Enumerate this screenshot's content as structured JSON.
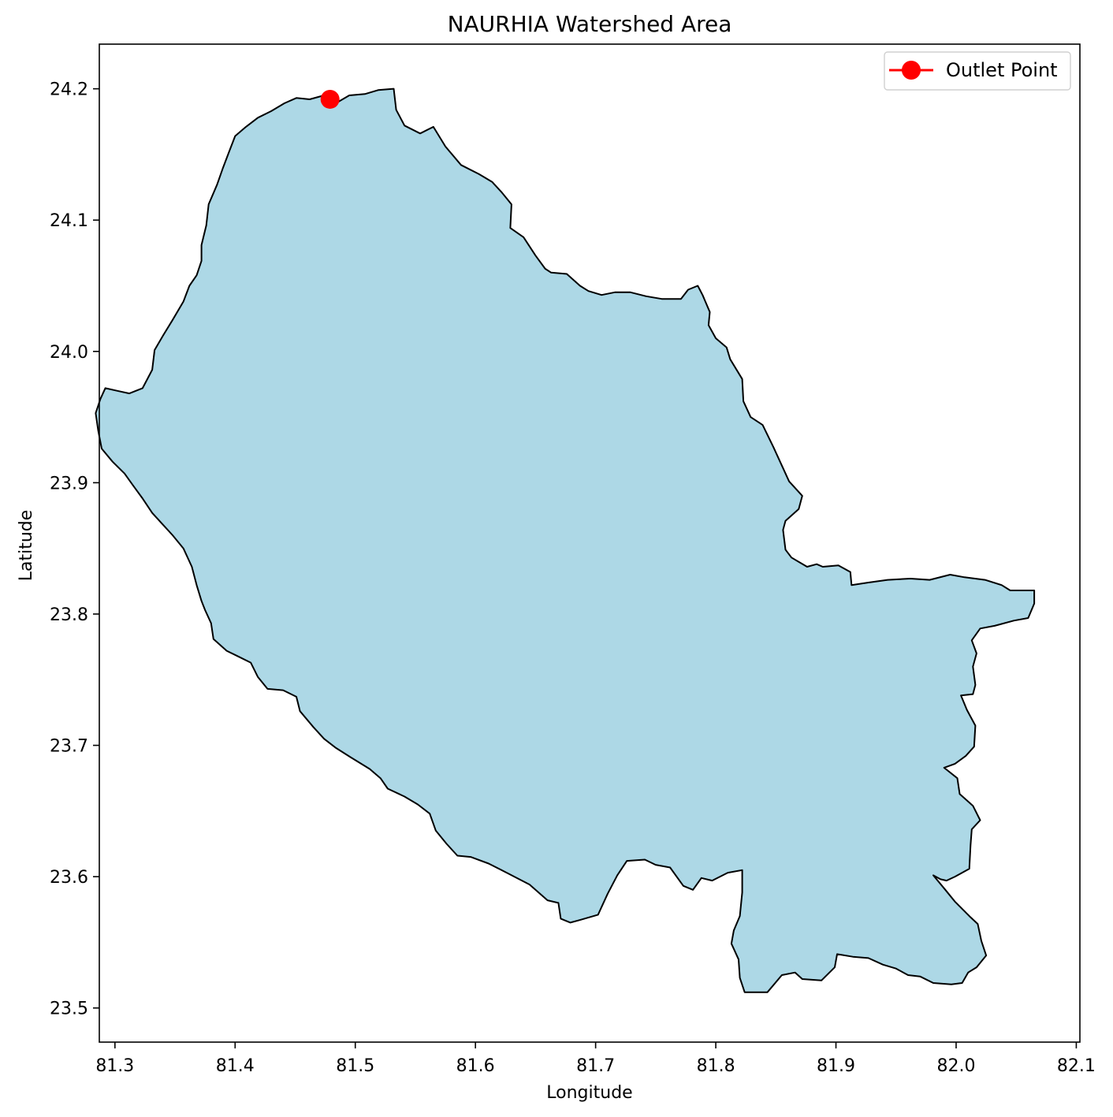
{
  "title": "NAURHIA Watershed Area",
  "chart_data": {
    "type": "map",
    "title": "NAURHIA Watershed Area",
    "xlabel": "Longitude",
    "ylabel": "Latitude",
    "xlim": [
      81.287,
      82.103
    ],
    "ylim": [
      23.474,
      24.234
    ],
    "xticks": [
      81.3,
      81.4,
      81.5,
      81.6,
      81.7,
      81.8,
      81.9,
      82.0,
      82.1
    ],
    "xtick_labels": [
      "81.3",
      "81.4",
      "81.5",
      "81.6",
      "81.7",
      "81.8",
      "81.9",
      "82.0",
      "82.1"
    ],
    "yticks": [
      23.5,
      23.6,
      23.7,
      23.8,
      23.9,
      24.0,
      24.1,
      24.2
    ],
    "ytick_labels": [
      "23.5",
      "23.6",
      "23.7",
      "23.8",
      "23.9",
      "24.0",
      "24.1",
      "24.2"
    ],
    "grid": false,
    "legend": {
      "placement": "upper-right",
      "entries": [
        "Outlet Point"
      ]
    },
    "watershed": {
      "fill_color": "#add8e6",
      "edge_color": "#000000",
      "boundary": [
        [
          81.462,
          24.192
        ],
        [
          81.474,
          24.195
        ],
        [
          81.482,
          24.188
        ],
        [
          81.495,
          24.195
        ],
        [
          81.508,
          24.196
        ],
        [
          81.519,
          24.199
        ],
        [
          81.532,
          24.2
        ],
        [
          81.534,
          24.184
        ],
        [
          81.541,
          24.172
        ],
        [
          81.554,
          24.166
        ],
        [
          81.565,
          24.171
        ],
        [
          81.575,
          24.156
        ],
        [
          81.588,
          24.142
        ],
        [
          81.603,
          24.135
        ],
        [
          81.614,
          24.129
        ],
        [
          81.622,
          24.121
        ],
        [
          81.63,
          24.112
        ],
        [
          81.629,
          24.094
        ],
        [
          81.64,
          24.087
        ],
        [
          81.65,
          24.073
        ],
        [
          81.658,
          24.063
        ],
        [
          81.663,
          24.06
        ],
        [
          81.676,
          24.059
        ],
        [
          81.687,
          24.05
        ],
        [
          81.694,
          24.046
        ],
        [
          81.705,
          24.043
        ],
        [
          81.716,
          24.045
        ],
        [
          81.729,
          24.045
        ],
        [
          81.742,
          24.042
        ],
        [
          81.755,
          24.04
        ],
        [
          81.771,
          24.04
        ],
        [
          81.777,
          24.047
        ],
        [
          81.785,
          24.05
        ],
        [
          81.789,
          24.043
        ],
        [
          81.795,
          24.03
        ],
        [
          81.794,
          24.02
        ],
        [
          81.8,
          24.01
        ],
        [
          81.809,
          24.003
        ],
        [
          81.812,
          23.994
        ],
        [
          81.822,
          23.979
        ],
        [
          81.823,
          23.962
        ],
        [
          81.829,
          23.95
        ],
        [
          81.839,
          23.944
        ],
        [
          81.848,
          23.927
        ],
        [
          81.861,
          23.901
        ],
        [
          81.872,
          23.89
        ],
        [
          81.869,
          23.88
        ],
        [
          81.858,
          23.871
        ],
        [
          81.856,
          23.864
        ],
        [
          81.858,
          23.849
        ],
        [
          81.863,
          23.843
        ],
        [
          81.876,
          23.836
        ],
        [
          81.884,
          23.838
        ],
        [
          81.889,
          23.836
        ],
        [
          81.902,
          23.837
        ],
        [
          81.912,
          23.832
        ],
        [
          81.913,
          23.822
        ],
        [
          81.927,
          23.824
        ],
        [
          81.943,
          23.826
        ],
        [
          81.962,
          23.827
        ],
        [
          81.978,
          23.826
        ],
        [
          81.995,
          23.83
        ],
        [
          82.007,
          23.828
        ],
        [
          82.024,
          23.826
        ],
        [
          82.038,
          23.822
        ],
        [
          82.045,
          23.818
        ],
        [
          82.065,
          23.818
        ],
        [
          82.065,
          23.808
        ],
        [
          82.06,
          23.797
        ],
        [
          82.048,
          23.795
        ],
        [
          82.032,
          23.791
        ],
        [
          82.02,
          23.789
        ],
        [
          82.013,
          23.78
        ],
        [
          82.017,
          23.77
        ],
        [
          82.014,
          23.76
        ],
        [
          82.016,
          23.746
        ],
        [
          82.014,
          23.739
        ],
        [
          82.004,
          23.738
        ],
        [
          82.009,
          23.727
        ],
        [
          82.016,
          23.715
        ],
        [
          82.015,
          23.699
        ],
        [
          82.008,
          23.692
        ],
        [
          81.999,
          23.686
        ],
        [
          81.99,
          23.683
        ],
        [
          82.001,
          23.675
        ],
        [
          82.003,
          23.663
        ],
        [
          82.014,
          23.654
        ],
        [
          82.02,
          23.643
        ],
        [
          82.013,
          23.636
        ],
        [
          82.012,
          23.624
        ],
        [
          82.011,
          23.606
        ],
        [
          81.999,
          23.6
        ],
        [
          81.992,
          23.597
        ],
        [
          81.987,
          23.598
        ],
        [
          81.981,
          23.601
        ],
        [
          81.991,
          23.59
        ],
        [
          81.999,
          23.581
        ],
        [
          82.011,
          23.57
        ],
        [
          82.018,
          23.564
        ],
        [
          82.021,
          23.551
        ],
        [
          82.025,
          23.54
        ],
        [
          82.017,
          23.531
        ],
        [
          82.01,
          23.527
        ],
        [
          82.005,
          23.519
        ],
        [
          81.996,
          23.518
        ],
        [
          81.981,
          23.519
        ],
        [
          81.97,
          23.524
        ],
        [
          81.96,
          23.525
        ],
        [
          81.95,
          23.53
        ],
        [
          81.939,
          23.533
        ],
        [
          81.927,
          23.538
        ],
        [
          81.914,
          23.539
        ],
        [
          81.901,
          23.541
        ],
        [
          81.899,
          23.531
        ],
        [
          81.888,
          23.521
        ],
        [
          81.872,
          23.522
        ],
        [
          81.866,
          23.527
        ],
        [
          81.855,
          23.525
        ],
        [
          81.843,
          23.512
        ],
        [
          81.832,
          23.512
        ],
        [
          81.824,
          23.512
        ],
        [
          81.82,
          23.523
        ],
        [
          81.819,
          23.537
        ],
        [
          81.813,
          23.549
        ],
        [
          81.815,
          23.559
        ],
        [
          81.82,
          23.57
        ],
        [
          81.822,
          23.588
        ],
        [
          81.822,
          23.605
        ],
        [
          81.81,
          23.603
        ],
        [
          81.797,
          23.597
        ],
        [
          81.788,
          23.599
        ],
        [
          81.781,
          23.59
        ],
        [
          81.773,
          23.593
        ],
        [
          81.762,
          23.607
        ],
        [
          81.75,
          23.609
        ],
        [
          81.741,
          23.613
        ],
        [
          81.726,
          23.612
        ],
        [
          81.718,
          23.601
        ],
        [
          81.71,
          23.587
        ],
        [
          81.702,
          23.571
        ],
        [
          81.687,
          23.567
        ],
        [
          81.679,
          23.565
        ],
        [
          81.671,
          23.568
        ],
        [
          81.669,
          23.58
        ],
        [
          81.66,
          23.582
        ],
        [
          81.645,
          23.594
        ],
        [
          81.626,
          23.603
        ],
        [
          81.611,
          23.61
        ],
        [
          81.596,
          23.615
        ],
        [
          81.585,
          23.616
        ],
        [
          81.576,
          23.625
        ],
        [
          81.567,
          23.635
        ],
        [
          81.562,
          23.648
        ],
        [
          81.552,
          23.655
        ],
        [
          81.541,
          23.661
        ],
        [
          81.527,
          23.667
        ],
        [
          81.521,
          23.675
        ],
        [
          81.512,
          23.682
        ],
        [
          81.496,
          23.691
        ],
        [
          81.484,
          23.698
        ],
        [
          81.474,
          23.705
        ],
        [
          81.465,
          23.714
        ],
        [
          81.454,
          23.726
        ],
        [
          81.451,
          23.737
        ],
        [
          81.44,
          23.742
        ],
        [
          81.427,
          23.743
        ],
        [
          81.419,
          23.752
        ],
        [
          81.413,
          23.763
        ],
        [
          81.402,
          23.768
        ],
        [
          81.393,
          23.772
        ],
        [
          81.382,
          23.781
        ],
        [
          81.38,
          23.793
        ],
        [
          81.375,
          23.803
        ],
        [
          81.372,
          23.81
        ],
        [
          81.368,
          23.822
        ],
        [
          81.364,
          23.836
        ],
        [
          81.357,
          23.85
        ],
        [
          81.348,
          23.86
        ],
        [
          81.34,
          23.868
        ],
        [
          81.331,
          23.877
        ],
        [
          81.323,
          23.888
        ],
        [
          81.315,
          23.898
        ],
        [
          81.308,
          23.907
        ],
        [
          81.298,
          23.916
        ],
        [
          81.289,
          23.926
        ],
        [
          81.286,
          23.94
        ],
        [
          81.284,
          23.953
        ],
        [
          81.288,
          23.964
        ],
        [
          81.292,
          23.972
        ],
        [
          81.302,
          23.97
        ],
        [
          81.312,
          23.968
        ],
        [
          81.323,
          23.972
        ],
        [
          81.331,
          23.986
        ],
        [
          81.333,
          24.001
        ],
        [
          81.34,
          24.012
        ],
        [
          81.348,
          24.024
        ],
        [
          81.357,
          24.038
        ],
        [
          81.362,
          24.05
        ],
        [
          81.368,
          24.058
        ],
        [
          81.372,
          24.069
        ],
        [
          81.372,
          24.081
        ],
        [
          81.376,
          24.096
        ],
        [
          81.378,
          24.112
        ],
        [
          81.385,
          24.127
        ],
        [
          81.39,
          24.14
        ],
        [
          81.395,
          24.152
        ],
        [
          81.4,
          24.164
        ],
        [
          81.409,
          24.171
        ],
        [
          81.419,
          24.178
        ],
        [
          81.43,
          24.183
        ],
        [
          81.441,
          24.189
        ],
        [
          81.451,
          24.193
        ],
        [
          81.462,
          24.192
        ]
      ]
    },
    "series": [
      {
        "name": "Outlet Point",
        "type": "point",
        "color": "#ff0000",
        "x": [
          81.479
        ],
        "y": [
          24.192
        ]
      }
    ]
  }
}
